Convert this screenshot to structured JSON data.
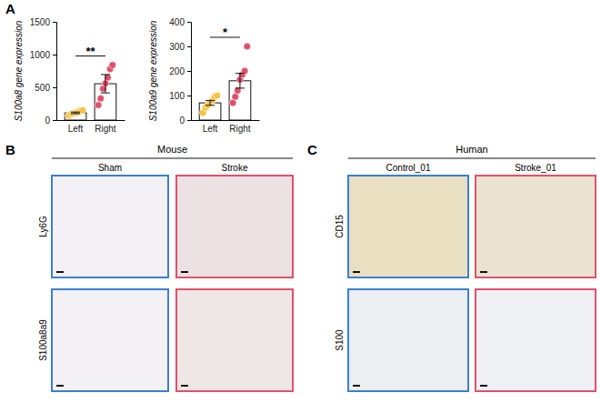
{
  "chart_data": [
    {
      "type": "bar",
      "y_label": "S100a8 gene expression",
      "categories": [
        "Left",
        "Right"
      ],
      "values": [
        110,
        555
      ],
      "errors": [
        12,
        140
      ],
      "points": [
        [
          70,
          90,
          100,
          110,
          120,
          140,
          150
        ],
        [
          230,
          330,
          480,
          560,
          650,
          780,
          840
        ]
      ],
      "colors": [
        "#f5c242",
        "#e0506a"
      ],
      "ylim": [
        0,
        1500
      ],
      "yticks": [
        0,
        500,
        1000,
        1500
      ],
      "annotation": "**",
      "grid": false
    },
    {
      "type": "bar",
      "y_label": "S100a9 gene expression",
      "categories": [
        "Left",
        "Right"
      ],
      "values": [
        70,
        160
      ],
      "errors": [
        10,
        30
      ],
      "points": [
        [
          30,
          50,
          60,
          70,
          80,
          95,
          100
        ],
        [
          70,
          95,
          120,
          165,
          185,
          200,
          300
        ]
      ],
      "colors": [
        "#f5c242",
        "#e0506a"
      ],
      "ylim": [
        0,
        400
      ],
      "yticks": [
        0,
        100,
        200,
        300,
        400
      ],
      "annotation": "*",
      "grid": false
    }
  ],
  "panel_labels": {
    "a": "A",
    "b": "B",
    "c": "C"
  },
  "mouse": {
    "title": "Mouse",
    "columns": [
      "Sham",
      "Stroke"
    ],
    "rows": [
      "Ly6G",
      "S100a8a9"
    ]
  },
  "human": {
    "title": "Human",
    "columns": [
      "Control_01",
      "Stroke_01"
    ],
    "rows": [
      "CD15",
      "S100"
    ]
  }
}
